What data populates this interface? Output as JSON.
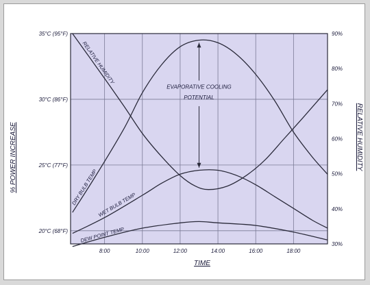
{
  "chart_data": {
    "type": "line",
    "title": "",
    "xlabel": "TIME",
    "ylabel_left": "% POWER INCREASE",
    "ylabel_right": "RELATIVE HUMIDITY",
    "x_ticks": [
      "8:00",
      "10:00",
      "12:00",
      "14:00",
      "16:00",
      "18:00"
    ],
    "x_range": [
      6.2,
      19.8
    ],
    "y_left_ticks": [
      "20°C (68°F)",
      "25°C (77°F)",
      "30°C (86°F)",
      "35°C (95°F)"
    ],
    "y_left_range": [
      19,
      35
    ],
    "y_right_ticks": [
      "30%",
      "40%",
      "50%",
      "60%",
      "70%",
      "80%",
      "90%"
    ],
    "y_right_range": [
      30,
      90
    ],
    "grid": true,
    "background_color": "#d9d6f0",
    "line_color": "#2a2a3a",
    "series": [
      {
        "name": "DRY BULB TEMP",
        "axis": "left",
        "x": [
          6.3,
          7.5,
          9,
          10,
          11,
          12,
          13,
          14,
          15,
          16,
          17,
          18,
          19,
          19.8
        ],
        "y": [
          21.4,
          24.1,
          27.7,
          30.5,
          32.6,
          34.0,
          34.5,
          34.3,
          33.4,
          31.9,
          29.9,
          27.5,
          25.6,
          24.3
        ]
      },
      {
        "name": "WET BULB TEMP",
        "axis": "left",
        "x": [
          6.3,
          8,
          10,
          11,
          12,
          13,
          14,
          15,
          16,
          17,
          18,
          19,
          19.8
        ],
        "y": [
          19.8,
          21.0,
          22.7,
          23.6,
          24.3,
          24.6,
          24.6,
          24.2,
          23.5,
          22.6,
          21.7,
          20.8,
          20.2
        ]
      },
      {
        "name": "DEW POINT TEMP",
        "axis": "left",
        "x": [
          6.3,
          8,
          10,
          12,
          13,
          14,
          16,
          18,
          19.8
        ],
        "y": [
          18.8,
          19.5,
          20.2,
          20.6,
          20.7,
          20.6,
          20.4,
          19.9,
          19.3
        ]
      },
      {
        "name": "RELATIVE HUMIDITY",
        "axis": "right",
        "x": [
          6.3,
          7.5,
          9,
          10,
          11,
          12,
          12.8,
          13.5,
          14.5,
          15.5,
          16.5,
          17.5,
          18.5,
          19.8
        ],
        "y": [
          90,
          81,
          69.5,
          61.5,
          55,
          49.5,
          46.5,
          45.5,
          46.5,
          49.5,
          54,
          60,
          66,
          74
        ]
      }
    ],
    "annotations": [
      {
        "text": "EVAPORATIVE COOLING",
        "x": 13,
        "y": 30.8
      },
      {
        "text": "POTENTIAL",
        "x": 13,
        "y": 30.0
      }
    ],
    "arrow": {
      "x": 13,
      "y_from": 24.8,
      "y_to": 34.3
    }
  }
}
